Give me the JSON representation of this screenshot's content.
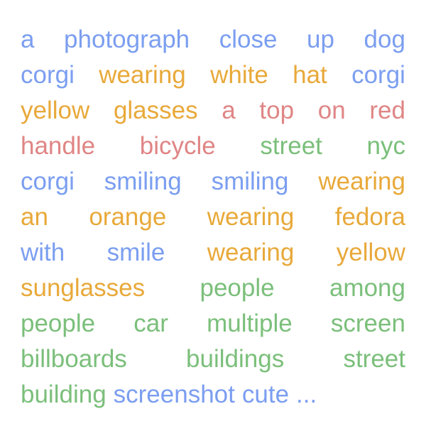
{
  "colors": {
    "blue": "#7b9ef0",
    "orange": "#e8a93a",
    "red": "#e08585",
    "green": "#7bbf7b"
  },
  "lines": [
    [
      {
        "text": "a",
        "color": "blue"
      },
      {
        "text": "photograph",
        "color": "blue"
      },
      {
        "text": "close",
        "color": "blue"
      },
      {
        "text": "up",
        "color": "blue"
      },
      {
        "text": "dog",
        "color": "blue"
      }
    ],
    [
      {
        "text": "corgi",
        "color": "blue"
      },
      {
        "text": "wearing",
        "color": "orange"
      },
      {
        "text": "white",
        "color": "orange"
      },
      {
        "text": "hat",
        "color": "orange"
      },
      {
        "text": "corgi",
        "color": "blue"
      }
    ],
    [
      {
        "text": "yellow",
        "color": "orange"
      },
      {
        "text": "glasses",
        "color": "orange"
      },
      {
        "text": "a",
        "color": "red"
      },
      {
        "text": "top",
        "color": "red"
      },
      {
        "text": "on",
        "color": "red"
      },
      {
        "text": "red",
        "color": "red"
      }
    ],
    [
      {
        "text": "handle",
        "color": "red"
      },
      {
        "text": "bicycle",
        "color": "red"
      },
      {
        "text": "street",
        "color": "green"
      },
      {
        "text": "nyc",
        "color": "green"
      }
    ],
    [
      {
        "text": "corgi",
        "color": "blue"
      },
      {
        "text": "smiling",
        "color": "blue"
      },
      {
        "text": "smiling",
        "color": "blue"
      },
      {
        "text": "wearing",
        "color": "orange"
      }
    ],
    [
      {
        "text": "an",
        "color": "orange"
      },
      {
        "text": "orange",
        "color": "orange"
      },
      {
        "text": "wearing",
        "color": "orange"
      },
      {
        "text": "fedora",
        "color": "orange"
      }
    ],
    [
      {
        "text": "with",
        "color": "blue"
      },
      {
        "text": "smile",
        "color": "blue"
      },
      {
        "text": "wearing",
        "color": "orange"
      },
      {
        "text": "yellow",
        "color": "orange"
      }
    ],
    [
      {
        "text": "sunglasses",
        "color": "orange"
      },
      {
        "text": "people",
        "color": "green"
      },
      {
        "text": "among",
        "color": "green"
      }
    ],
    [
      {
        "text": "people",
        "color": "green"
      },
      {
        "text": "car",
        "color": "green"
      },
      {
        "text": "multiple",
        "color": "green"
      },
      {
        "text": "screen",
        "color": "green"
      }
    ],
    [
      {
        "text": "billboards",
        "color": "green"
      },
      {
        "text": "buildings",
        "color": "green"
      },
      {
        "text": "street",
        "color": "green"
      }
    ],
    [
      {
        "text": "building",
        "color": "green"
      },
      {
        "text": "screenshot",
        "color": "blue"
      },
      {
        "text": "cute",
        "color": "blue"
      },
      {
        "text": "...",
        "color": "blue"
      }
    ]
  ]
}
